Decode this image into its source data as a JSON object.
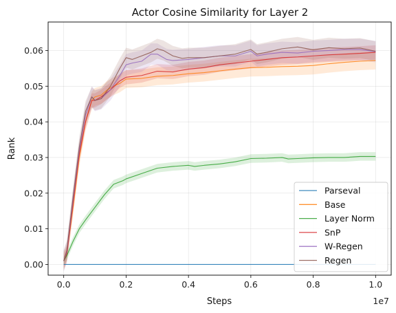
{
  "chart_data": {
    "type": "line",
    "title": "Actor Cosine Similarity for Layer 2",
    "xlabel": "Steps",
    "ylabel": "Rank",
    "x_offset_label": "1e7",
    "xlim": [
      -0.05,
      1.05
    ],
    "ylim": [
      -0.003,
      0.068
    ],
    "xticks": [
      0.0,
      0.2,
      0.4,
      0.6,
      0.8,
      1.0
    ],
    "xtick_labels": [
      "0.0",
      "0.2",
      "0.4",
      "0.6",
      "0.8",
      "1.0"
    ],
    "yticks": [
      0.0,
      0.01,
      0.02,
      0.03,
      0.04,
      0.05,
      0.06
    ],
    "ytick_labels": [
      "0.00",
      "0.01",
      "0.02",
      "0.03",
      "0.04",
      "0.05",
      "0.06"
    ],
    "grid": true,
    "legend_position": "bottom-right",
    "series": [
      {
        "name": "Parseval",
        "color": "#1f77b4",
        "x": [
          0.0,
          0.2,
          0.4,
          0.6,
          0.8,
          1.0
        ],
        "y": [
          0.0,
          0.0,
          0.0,
          0.0,
          0.0,
          0.0
        ],
        "band": 0.0001
      },
      {
        "name": "Base",
        "color": "#ff7f0e",
        "x": [
          0.0,
          0.01,
          0.03,
          0.05,
          0.07,
          0.09,
          0.1,
          0.12,
          0.14,
          0.16,
          0.18,
          0.2,
          0.25,
          0.3,
          0.35,
          0.4,
          0.45,
          0.5,
          0.55,
          0.6,
          0.65,
          0.7,
          0.75,
          0.8,
          0.85,
          0.9,
          0.95,
          1.0
        ],
        "y": [
          0.001,
          0.003,
          0.016,
          0.03,
          0.04,
          0.046,
          0.047,
          0.0475,
          0.049,
          0.05,
          0.0508,
          0.052,
          0.0522,
          0.0528,
          0.053,
          0.0535,
          0.0538,
          0.0543,
          0.0548,
          0.0552,
          0.0553,
          0.0555,
          0.0556,
          0.0558,
          0.0563,
          0.0567,
          0.057,
          0.0572
        ],
        "band": 0.0025
      },
      {
        "name": "Layer Norm",
        "color": "#2ca02c",
        "x": [
          0.0,
          0.01,
          0.03,
          0.05,
          0.07,
          0.1,
          0.13,
          0.16,
          0.19,
          0.2,
          0.25,
          0.3,
          0.35,
          0.4,
          0.42,
          0.45,
          0.5,
          0.55,
          0.6,
          0.65,
          0.7,
          0.72,
          0.75,
          0.8,
          0.85,
          0.9,
          0.95,
          1.0
        ],
        "y": [
          0.001,
          0.0025,
          0.0065,
          0.01,
          0.0125,
          0.016,
          0.0195,
          0.0225,
          0.0235,
          0.024,
          0.0255,
          0.027,
          0.0275,
          0.0278,
          0.0275,
          0.0278,
          0.0282,
          0.0288,
          0.0297,
          0.0298,
          0.03,
          0.0296,
          0.0297,
          0.0299,
          0.03,
          0.03,
          0.0303,
          0.0303
        ],
        "band": 0.0012
      },
      {
        "name": "SnP",
        "color": "#d62728",
        "x": [
          0.0,
          0.01,
          0.03,
          0.05,
          0.07,
          0.09,
          0.1,
          0.12,
          0.15,
          0.18,
          0.2,
          0.25,
          0.3,
          0.35,
          0.4,
          0.45,
          0.5,
          0.55,
          0.6,
          0.65,
          0.7,
          0.75,
          0.8,
          0.85,
          0.9,
          0.95,
          1.0
        ],
        "y": [
          0.001,
          0.003,
          0.017,
          0.031,
          0.04,
          0.046,
          0.046,
          0.047,
          0.049,
          0.0515,
          0.0525,
          0.053,
          0.0542,
          0.054,
          0.0548,
          0.0552,
          0.056,
          0.0565,
          0.057,
          0.0575,
          0.058,
          0.0582,
          0.0585,
          0.0588,
          0.059,
          0.0592,
          0.0595
        ],
        "band": 0.002
      },
      {
        "name": "W-Regen",
        "color": "#9467bd",
        "x": [
          0.0,
          0.01,
          0.03,
          0.05,
          0.07,
          0.09,
          0.1,
          0.12,
          0.15,
          0.18,
          0.2,
          0.22,
          0.25,
          0.28,
          0.3,
          0.33,
          0.35,
          0.4,
          0.45,
          0.5,
          0.55,
          0.6,
          0.62,
          0.65,
          0.7,
          0.75,
          0.8,
          0.85,
          0.9,
          0.95,
          1.0
        ],
        "y": [
          0.001,
          0.0035,
          0.018,
          0.032,
          0.042,
          0.047,
          0.046,
          0.0465,
          0.049,
          0.053,
          0.056,
          0.0565,
          0.057,
          0.059,
          0.059,
          0.0575,
          0.0572,
          0.0575,
          0.058,
          0.0585,
          0.0585,
          0.0598,
          0.0585,
          0.059,
          0.0595,
          0.0593,
          0.0598,
          0.06,
          0.0603,
          0.0603,
          0.0597
        ],
        "band": 0.003
      },
      {
        "name": "Regen",
        "color": "#8c564b",
        "x": [
          0.0,
          0.01,
          0.03,
          0.05,
          0.07,
          0.09,
          0.1,
          0.12,
          0.15,
          0.18,
          0.2,
          0.22,
          0.25,
          0.28,
          0.3,
          0.32,
          0.35,
          0.38,
          0.4,
          0.45,
          0.5,
          0.55,
          0.6,
          0.62,
          0.65,
          0.7,
          0.75,
          0.8,
          0.85,
          0.9,
          0.95,
          1.0
        ],
        "y": [
          0.001,
          0.004,
          0.019,
          0.033,
          0.043,
          0.047,
          0.046,
          0.0465,
          0.05,
          0.055,
          0.058,
          0.0575,
          0.0585,
          0.0595,
          0.0605,
          0.06,
          0.0585,
          0.0578,
          0.058,
          0.058,
          0.0585,
          0.059,
          0.0603,
          0.059,
          0.0595,
          0.0605,
          0.061,
          0.0602,
          0.0608,
          0.0605,
          0.0607,
          0.0598
        ],
        "band": 0.0028
      }
    ]
  }
}
